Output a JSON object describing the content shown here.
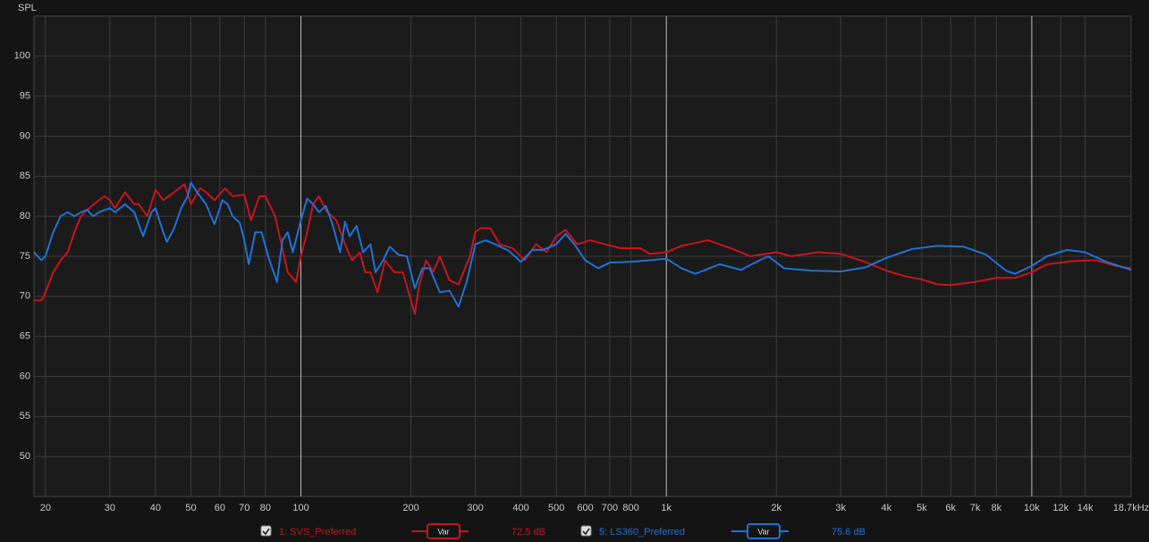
{
  "chart_data": {
    "type": "line",
    "y_label": "SPL",
    "x_scale": "log",
    "grid": true,
    "xlim": [
      18.6,
      18700
    ],
    "ylim": [
      45,
      105
    ],
    "yticks": [
      50,
      55,
      60,
      65,
      70,
      75,
      80,
      85,
      90,
      95,
      100
    ],
    "xticks": [
      20,
      30,
      40,
      50,
      60,
      70,
      80,
      100,
      200,
      300,
      400,
      500,
      600,
      700,
      800,
      {
        "value": 1000,
        "label": "1k"
      },
      {
        "value": 2000,
        "label": "2k"
      },
      {
        "value": 3000,
        "label": "3k"
      },
      {
        "value": 4000,
        "label": "4k"
      },
      {
        "value": 5000,
        "label": "5k"
      },
      {
        "value": 6000,
        "label": "6k"
      },
      {
        "value": 7000,
        "label": "7k"
      },
      {
        "value": 8000,
        "label": "8k"
      },
      {
        "value": 10000,
        "label": "10k"
      },
      {
        "value": 12000,
        "label": "12k"
      },
      {
        "value": 14000,
        "label": "14k"
      },
      {
        "value": 18700,
        "label": "18.7kHz"
      }
    ],
    "series": [
      {
        "name": "1: SVS_Preferred",
        "color": "#c8141e",
        "button": "Var",
        "level": "72.5 dB",
        "x": [
          18.6,
          19.5,
          20,
          21,
          22,
          23,
          24,
          25,
          26,
          28,
          29,
          30,
          31,
          33,
          35,
          36,
          38,
          40,
          42,
          45,
          48,
          50,
          53,
          55,
          58,
          62,
          65,
          70,
          73,
          77,
          80,
          85,
          88,
          92,
          97,
          100,
          104,
          108,
          112,
          118,
          125,
          132,
          138,
          145,
          150,
          155,
          162,
          170,
          180,
          190,
          200,
          205,
          210,
          220,
          230,
          240,
          255,
          270,
          290,
          300,
          310,
          330,
          350,
          380,
          410,
          440,
          470,
          500,
          530,
          570,
          620,
          680,
          750,
          850,
          900,
          1000,
          1100,
          1300,
          1500,
          1700,
          2000,
          2200,
          2600,
          3000,
          3500,
          4000,
          4500,
          5000,
          5500,
          6000,
          7000,
          8000,
          9000,
          10000,
          11000,
          13000,
          15000,
          17000,
          18700
        ],
        "values": [
          69.5,
          69.5,
          70.5,
          73,
          74.5,
          75.5,
          78,
          80,
          80.8,
          82,
          82.5,
          82,
          81,
          83,
          81.5,
          81.5,
          80,
          83.3,
          82,
          83,
          84,
          81.5,
          83.5,
          83,
          82,
          83.5,
          82.5,
          82.7,
          79.5,
          82.5,
          82.5,
          80,
          77,
          73,
          71.8,
          75,
          78,
          81.5,
          82.5,
          80.5,
          79.5,
          76.5,
          74.5,
          75.5,
          73,
          73,
          70.5,
          74.5,
          73,
          73,
          69.5,
          67.8,
          71,
          74.5,
          73,
          75,
          72,
          71.5,
          75,
          78,
          78.5,
          78.5,
          76.5,
          76,
          74.5,
          76.5,
          75.5,
          77.5,
          78.3,
          76.5,
          77,
          76.5,
          76,
          76,
          75.3,
          75.5,
          76.3,
          77,
          76,
          75,
          75.5,
          75,
          75.5,
          75.3,
          74.3,
          73.2,
          72.5,
          72.1,
          71.5,
          71.4,
          71.8,
          72.3,
          72.3,
          73,
          74,
          74.4,
          74.5,
          73.8,
          73.5
        ]
      },
      {
        "name": "5: LS360_Preferred",
        "color": "#1f72d6",
        "button": "Var",
        "level": "75.6 dB",
        "x": [
          18.6,
          19.5,
          20,
          21,
          22,
          23,
          24,
          25,
          26,
          27,
          28,
          30,
          31,
          33,
          35,
          37,
          39,
          40,
          42,
          43,
          45,
          47,
          49,
          50,
          52,
          55,
          58,
          61,
          63,
          65,
          68,
          70,
          72,
          75,
          78,
          82,
          86,
          89,
          92,
          95,
          100,
          104,
          108,
          112,
          117,
          122,
          128,
          132,
          136,
          142,
          148,
          155,
          160,
          168,
          175,
          185,
          195,
          205,
          215,
          225,
          240,
          255,
          270,
          285,
          300,
          320,
          340,
          370,
          400,
          430,
          460,
          500,
          530,
          560,
          600,
          650,
          700,
          800,
          900,
          1000,
          1100,
          1200,
          1400,
          1600,
          1800,
          1900,
          2100,
          2500,
          3000,
          3500,
          4000,
          4700,
          5500,
          6500,
          7500,
          8500,
          9000,
          10000,
          11000,
          12500,
          14000,
          16000,
          18700
        ],
        "values": [
          75.5,
          74.5,
          75,
          78,
          80,
          80.5,
          80,
          80.5,
          80.8,
          80,
          80.5,
          81,
          80.5,
          81.5,
          80.5,
          77.5,
          80.5,
          81,
          78,
          76.8,
          78.5,
          81,
          82.5,
          84.2,
          83,
          81.5,
          79,
          82,
          81.5,
          80,
          79.2,
          77,
          74,
          78,
          78,
          74.5,
          71.8,
          77,
          78,
          75.5,
          79.5,
          82.2,
          81.5,
          80.5,
          81.3,
          79,
          75.5,
          79.3,
          77.5,
          78.8,
          75.5,
          76.5,
          73,
          74.5,
          76.2,
          75.2,
          75,
          71,
          73.5,
          73.5,
          70.5,
          70.7,
          68.7,
          72,
          76.5,
          77,
          76.5,
          75.7,
          74.3,
          75.8,
          75.8,
          76.5,
          77.8,
          76.5,
          74.5,
          73.5,
          74.2,
          74.3,
          74.5,
          74.7,
          73.5,
          72.8,
          74,
          73.3,
          74.5,
          75,
          73.5,
          73.2,
          73.1,
          73.6,
          74.8,
          75.9,
          76.3,
          76.2,
          75.2,
          73.2,
          72.8,
          73.8,
          75,
          75.8,
          75.5,
          74.3,
          73.3
        ]
      }
    ]
  }
}
